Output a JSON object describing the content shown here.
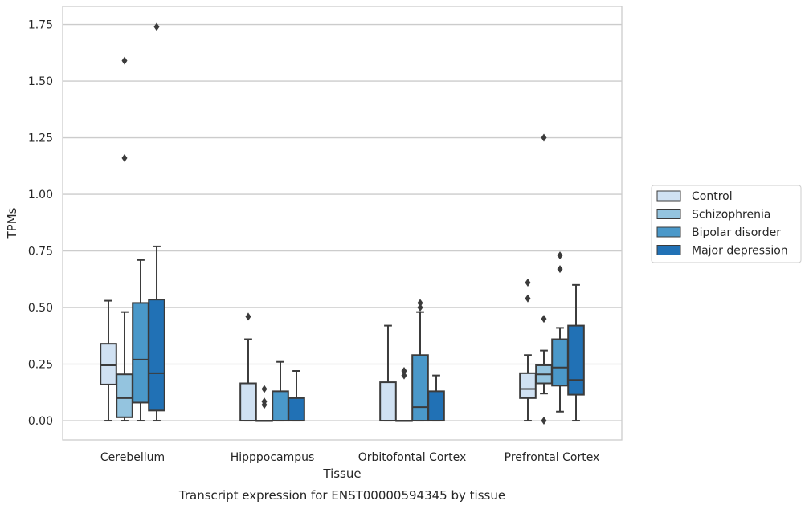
{
  "chart_data": {
    "type": "box",
    "caption": "Transcript expression for ENST00000594345 by tissue",
    "xlabel": "Tissue",
    "ylabel": "TPMs",
    "ylim": [
      -0.085,
      1.83
    ],
    "y_ticks": [
      "0.00",
      "0.25",
      "0.50",
      "0.75",
      "1.00",
      "1.25",
      "1.50",
      "1.75"
    ],
    "y_tick_values": [
      0,
      0.25,
      0.5,
      0.75,
      1.0,
      1.25,
      1.5,
      1.75
    ],
    "grid": "horizontal",
    "legend_position": "right",
    "categories": [
      "Cerebellum",
      "Hipppocampus",
      "Orbitofontal Cortex",
      "Prefrontal Cortex"
    ],
    "series": [
      {
        "name": "Control",
        "color": "#d0e1f2",
        "boxes": [
          {
            "whislo": 0.0,
            "q1": 0.16,
            "med": 0.245,
            "q3": 0.34,
            "whishi": 0.53,
            "fliers": []
          },
          {
            "whislo": 0.0,
            "q1": 0.0,
            "med": 0.0,
            "q3": 0.165,
            "whishi": 0.36,
            "fliers": [
              0.46
            ]
          },
          {
            "whislo": 0.0,
            "q1": 0.0,
            "med": 0.0,
            "q3": 0.17,
            "whishi": 0.42,
            "fliers": []
          },
          {
            "whislo": 0.0,
            "q1": 0.1,
            "med": 0.14,
            "q3": 0.21,
            "whishi": 0.29,
            "fliers": [
              0.54,
              0.61
            ]
          }
        ]
      },
      {
        "name": "Schizophrenia",
        "color": "#94c4df",
        "boxes": [
          {
            "whislo": 0.0,
            "q1": 0.015,
            "med": 0.1,
            "q3": 0.205,
            "whishi": 0.48,
            "fliers": [
              1.16,
              1.59
            ]
          },
          {
            "whislo": 0.0,
            "q1": 0.0,
            "med": 0.0,
            "q3": 0.0,
            "whishi": 0.0,
            "fliers": [
              0.07,
              0.085,
              0.14
            ]
          },
          {
            "whislo": 0.0,
            "q1": 0.0,
            "med": 0.0,
            "q3": 0.0,
            "whishi": 0.0,
            "fliers": [
              0.2,
              0.22
            ]
          },
          {
            "whislo": 0.12,
            "q1": 0.165,
            "med": 0.205,
            "q3": 0.245,
            "whishi": 0.31,
            "fliers": [
              0.0,
              0.45,
              1.25
            ]
          }
        ]
      },
      {
        "name": "Bipolar disorder",
        "color": "#4a98c9",
        "boxes": [
          {
            "whislo": 0.0,
            "q1": 0.08,
            "med": 0.27,
            "q3": 0.52,
            "whishi": 0.71,
            "fliers": []
          },
          {
            "whislo": 0.0,
            "q1": 0.0,
            "med": 0.0,
            "q3": 0.13,
            "whishi": 0.26,
            "fliers": []
          },
          {
            "whislo": 0.0,
            "q1": 0.0,
            "med": 0.06,
            "q3": 0.29,
            "whishi": 0.48,
            "fliers": [
              0.5,
              0.52
            ]
          },
          {
            "whislo": 0.04,
            "q1": 0.155,
            "med": 0.235,
            "q3": 0.36,
            "whishi": 0.41,
            "fliers": [
              0.67,
              0.73
            ]
          }
        ]
      },
      {
        "name": "Major depression",
        "color": "#2171b5",
        "boxes": [
          {
            "whislo": 0.0,
            "q1": 0.045,
            "med": 0.21,
            "q3": 0.535,
            "whishi": 0.77,
            "fliers": [
              1.74
            ]
          },
          {
            "whislo": 0.0,
            "q1": 0.0,
            "med": 0.0,
            "q3": 0.1,
            "whishi": 0.22,
            "fliers": []
          },
          {
            "whislo": 0.0,
            "q1": 0.0,
            "med": 0.0,
            "q3": 0.13,
            "whishi": 0.2,
            "fliers": []
          },
          {
            "whislo": 0.0,
            "q1": 0.115,
            "med": 0.18,
            "q3": 0.42,
            "whishi": 0.6,
            "fliers": []
          }
        ]
      }
    ]
  }
}
